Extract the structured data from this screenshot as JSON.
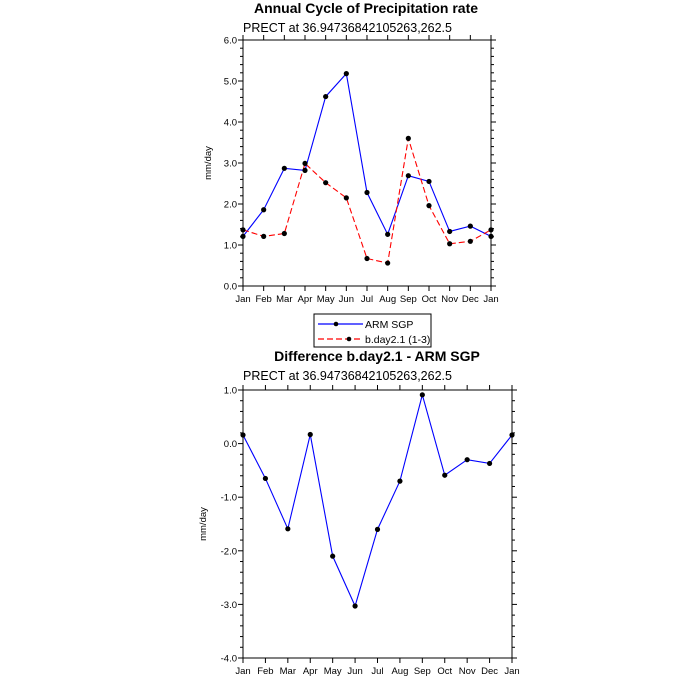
{
  "colors": {
    "arm": "#0000ff",
    "model": "#ff0000",
    "difference": "#0000ff",
    "marker": "#000000"
  },
  "chart_data": [
    {
      "type": "line",
      "title": "Annual Cycle of Precipitation rate",
      "subtitle": "PRECT at 36.94736842105263,262.5",
      "xlabel": "",
      "ylabel": "mm/day",
      "categories": [
        "Jan",
        "Feb",
        "Mar",
        "Apr",
        "May",
        "Jun",
        "Jul",
        "Aug",
        "Sep",
        "Oct",
        "Nov",
        "Dec",
        "Jan"
      ],
      "ylim": [
        0,
        6
      ],
      "yticks": [
        "0.0",
        "1.0",
        "2.0",
        "3.0",
        "4.0",
        "5.0",
        "6.0"
      ],
      "series": [
        {
          "name": "ARM SGP",
          "style": "solid",
          "color": "#0000ff",
          "values": [
            1.21,
            1.86,
            2.87,
            2.82,
            4.62,
            5.18,
            2.28,
            1.26,
            2.69,
            2.55,
            1.33,
            1.46,
            1.21
          ]
        },
        {
          "name": "b.day2.1 (1-3)",
          "style": "dashed",
          "color": "#ff0000",
          "values": [
            1.37,
            1.21,
            1.28,
            2.99,
            2.52,
            2.15,
            0.67,
            0.56,
            3.6,
            1.96,
            1.03,
            1.09,
            1.37
          ]
        }
      ],
      "legend_placement": "bottom-center",
      "grid": false
    },
    {
      "type": "line",
      "title": "Difference b.day2.1 - ARM SGP",
      "subtitle": "PRECT at 36.94736842105263,262.5",
      "xlabel": "",
      "ylabel": "mm/day",
      "categories": [
        "Jan",
        "Feb",
        "Mar",
        "Apr",
        "May",
        "Jun",
        "Jul",
        "Aug",
        "Sep",
        "Oct",
        "Nov",
        "Dec",
        "Jan"
      ],
      "ylim": [
        -4,
        1
      ],
      "yticks": [
        "-4.0",
        "-3.0",
        "-2.0",
        "-1.0",
        "0.0",
        "1.0"
      ],
      "series": [
        {
          "style": "solid",
          "color": "#0000ff",
          "values": [
            0.16,
            -0.65,
            -1.59,
            0.17,
            -2.1,
            -3.03,
            -1.6,
            -0.7,
            0.91,
            -0.59,
            -0.3,
            -0.37,
            0.16
          ]
        }
      ],
      "grid": false
    }
  ]
}
